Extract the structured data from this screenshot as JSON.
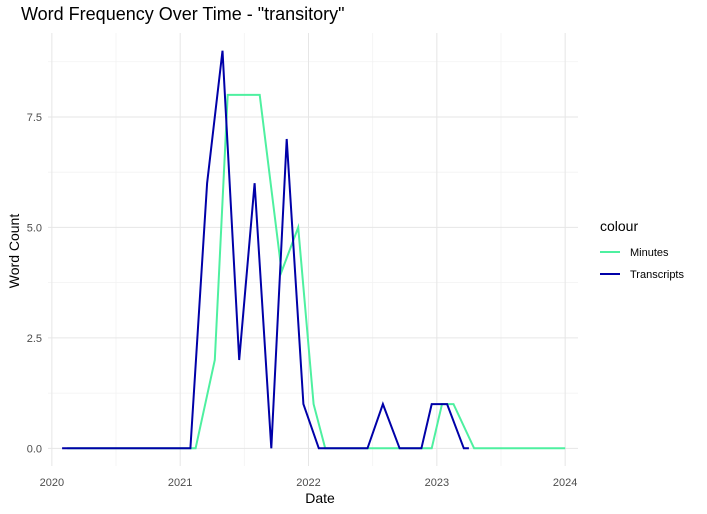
{
  "chart_data": {
    "type": "line",
    "title": "Word Frequency Over Time - \"transitory\"",
    "xlabel": "Date",
    "ylabel": "Word Count",
    "x_ticks": [
      "2020",
      "2021",
      "2022",
      "2023",
      "2024"
    ],
    "y_ticks": [
      "0.0",
      "2.5",
      "5.0",
      "7.5"
    ],
    "xlim": [
      2019.97,
      2024.1
    ],
    "ylim": [
      -0.4,
      9.4
    ],
    "grid": true,
    "legend": {
      "title": "colour",
      "position": "right"
    },
    "series": [
      {
        "name": "Minutes",
        "color": "#4ef0a0",
        "points": [
          [
            2020.12,
            0
          ],
          [
            2021.12,
            0
          ],
          [
            2021.27,
            2
          ],
          [
            2021.37,
            8
          ],
          [
            2021.62,
            8
          ],
          [
            2021.79,
            4
          ],
          [
            2021.92,
            5
          ],
          [
            2022.04,
            1
          ],
          [
            2022.13,
            0
          ],
          [
            2022.79,
            0
          ],
          [
            2022.96,
            0
          ],
          [
            2023.04,
            1
          ],
          [
            2023.13,
            1
          ],
          [
            2023.29,
            0
          ],
          [
            2024.0,
            0
          ]
        ]
      },
      {
        "name": "Transcripts",
        "color": "#0000a8",
        "points": [
          [
            2020.08,
            0
          ],
          [
            2020.12,
            0
          ],
          [
            2021.08,
            0
          ],
          [
            2021.21,
            6
          ],
          [
            2021.33,
            9
          ],
          [
            2021.46,
            2
          ],
          [
            2021.58,
            6
          ],
          [
            2021.71,
            0
          ],
          [
            2021.83,
            7
          ],
          [
            2021.96,
            1
          ],
          [
            2022.08,
            0
          ],
          [
            2022.46,
            0
          ],
          [
            2022.58,
            1
          ],
          [
            2022.71,
            0
          ],
          [
            2022.88,
            0
          ],
          [
            2022.96,
            1
          ],
          [
            2023.08,
            1
          ],
          [
            2023.21,
            0
          ],
          [
            2023.25,
            0
          ]
        ]
      }
    ]
  }
}
